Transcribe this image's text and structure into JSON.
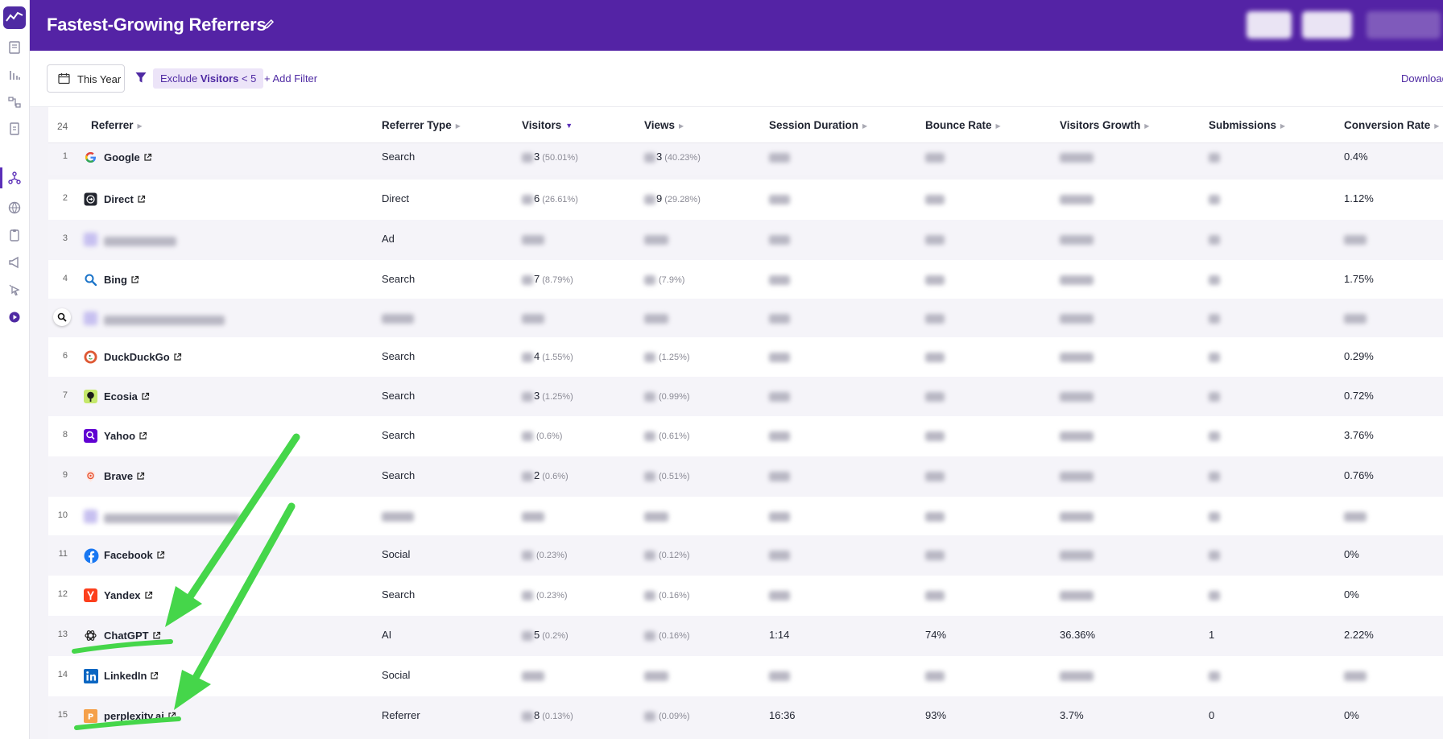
{
  "header": {
    "title": "Fastest-Growing Referrers"
  },
  "filters": {
    "date_label": "This Year",
    "chip_prefix": "Exclude ",
    "chip_field": "Visitors",
    "chip_op": " < 5",
    "add_filter": "+ Add Filter",
    "download": "Download"
  },
  "table": {
    "count": "24",
    "columns": {
      "referrer": "Referrer",
      "type": "Referrer Type",
      "visitors": "Visitors",
      "views": "Views",
      "session": "Session Duration",
      "bounce": "Bounce Rate",
      "growth": "Visitors Growth",
      "submissions": "Submissions",
      "conversion": "Conversion Rate"
    },
    "rows": [
      {
        "rank": "1",
        "name": "Google",
        "type": "Search",
        "visitors": "3",
        "visitors_pct": "(50.01%)",
        "views": "3",
        "views_pct": "(40.23%)",
        "session": "",
        "bounce": "",
        "growth": "",
        "subs": "",
        "conv": "0.4%",
        "icon": "google-icon"
      },
      {
        "rank": "2",
        "name": "Direct",
        "type": "Direct",
        "visitors": "6",
        "visitors_pct": "(26.61%)",
        "views": "9",
        "views_pct": "(29.28%)",
        "session": "",
        "bounce": "",
        "growth": "",
        "subs": "",
        "conv": "1.12%",
        "icon": "direct-icon"
      },
      {
        "rank": "3",
        "name": "",
        "type": "Ad",
        "visitors": "",
        "visitors_pct": "",
        "views": "",
        "views_pct": "",
        "session": "",
        "bounce": "",
        "growth": "",
        "subs": "",
        "conv": "",
        "icon": "blurred-icon"
      },
      {
        "rank": "4",
        "name": "Bing",
        "type": "Search",
        "visitors": "7",
        "visitors_pct": "(8.79%)",
        "views": "",
        "views_pct": "(7.9%)",
        "session": "",
        "bounce": "",
        "growth": "",
        "subs": "",
        "conv": "1.75%",
        "icon": "bing-icon"
      },
      {
        "rank": "",
        "name": "",
        "type": "",
        "visitors": "",
        "visitors_pct": "",
        "views": "",
        "views_pct": "",
        "session": "",
        "bounce": "",
        "growth": "",
        "subs": "",
        "conv": "",
        "icon": "blurred-icon"
      },
      {
        "rank": "6",
        "name": "DuckDuckGo",
        "type": "Search",
        "visitors": "4",
        "visitors_pct": "(1.55%)",
        "views": "",
        "views_pct": "(1.25%)",
        "session": "",
        "bounce": "",
        "growth": "",
        "subs": "",
        "conv": "0.29%",
        "icon": "duckduckgo-icon"
      },
      {
        "rank": "7",
        "name": "Ecosia",
        "type": "Search",
        "visitors": "3",
        "visitors_pct": "(1.25%)",
        "views": "",
        "views_pct": "(0.99%)",
        "session": "",
        "bounce": "",
        "growth": "",
        "subs": "",
        "conv": "0.72%",
        "icon": "ecosia-icon"
      },
      {
        "rank": "8",
        "name": "Yahoo",
        "type": "Search",
        "visitors": "",
        "visitors_pct": "(0.6%)",
        "views": "",
        "views_pct": "(0.61%)",
        "session": "",
        "bounce": "",
        "growth": "",
        "subs": "",
        "conv": "3.76%",
        "icon": "yahoo-icon"
      },
      {
        "rank": "9",
        "name": "Brave",
        "type": "Search",
        "visitors": "2",
        "visitors_pct": "(0.6%)",
        "views": "",
        "views_pct": "(0.51%)",
        "session": "",
        "bounce": "",
        "growth": "",
        "subs": "",
        "conv": "0.76%",
        "icon": "brave-icon"
      },
      {
        "rank": "10",
        "name": "",
        "type": "",
        "visitors": "",
        "visitors_pct": "",
        "views": "",
        "views_pct": "",
        "session": "",
        "bounce": "",
        "growth": "",
        "subs": "",
        "conv": "",
        "icon": "blurred-icon"
      },
      {
        "rank": "11",
        "name": "Facebook",
        "type": "Social",
        "visitors": "",
        "visitors_pct": "(0.23%)",
        "views": "",
        "views_pct": "(0.12%)",
        "session": "",
        "bounce": "",
        "growth": "",
        "subs": "",
        "conv": "0%",
        "icon": "facebook-icon"
      },
      {
        "rank": "12",
        "name": "Yandex",
        "type": "Search",
        "visitors": "",
        "visitors_pct": "(0.23%)",
        "views": "",
        "views_pct": "(0.16%)",
        "session": "",
        "bounce": "",
        "growth": "",
        "subs": "",
        "conv": "0%",
        "icon": "yandex-icon"
      },
      {
        "rank": "13",
        "name": "ChatGPT",
        "type": "AI",
        "visitors": "5",
        "visitors_pct": "(0.2%)",
        "views": "",
        "views_pct": "(0.16%)",
        "session": "1:14",
        "bounce": "74%",
        "growth": "36.36%",
        "subs": "1",
        "conv": "2.22%",
        "icon": "chatgpt-icon"
      },
      {
        "rank": "14",
        "name": "LinkedIn",
        "type": "Social",
        "visitors": "",
        "visitors_pct": "",
        "views": "",
        "views_pct": "",
        "session": "",
        "bounce": "",
        "growth": "",
        "subs": "",
        "conv": "",
        "icon": "linkedin-icon"
      },
      {
        "rank": "15",
        "name": "perplexity.ai",
        "type": "Referrer",
        "visitors": "8",
        "visitors_pct": "(0.13%)",
        "views": "",
        "views_pct": "(0.09%)",
        "session": "16:36",
        "bounce": "93%",
        "growth": "3.7%",
        "subs": "0",
        "conv": "0%",
        "icon": "perplexity-icon"
      }
    ]
  },
  "colors": {
    "header": "#5423a5",
    "accent": "#4f2aa3",
    "arrow": "#45d64a"
  }
}
